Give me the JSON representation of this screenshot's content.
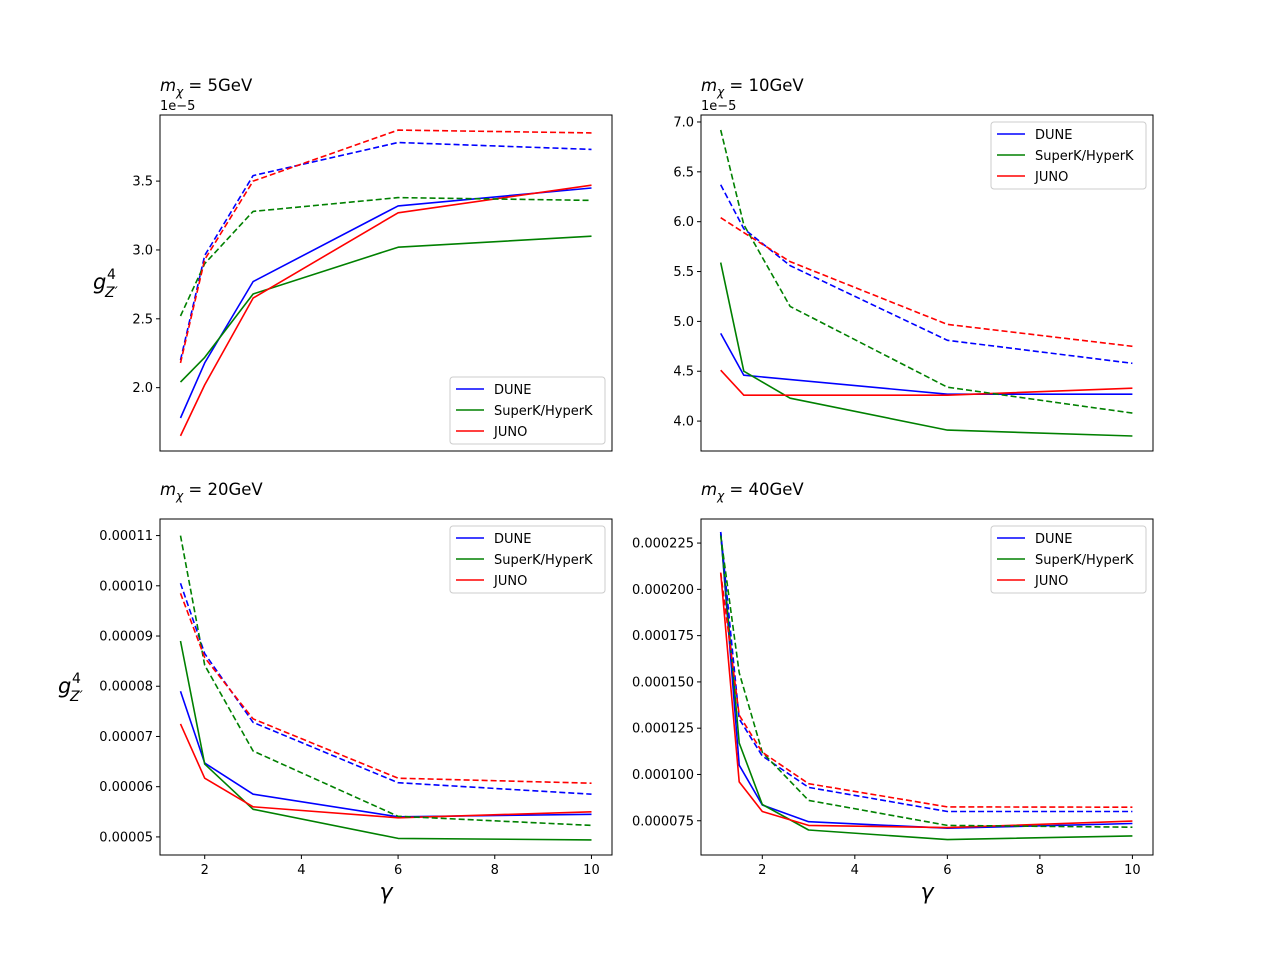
{
  "figure": {
    "x_label": "γ",
    "y_label_main": "g",
    "y_label_sub": "Z′",
    "y_label_sup": "4",
    "title_prefix": "m",
    "title_sub": "χ"
  },
  "colors": {
    "DUNE": "#0000ff",
    "SuperK/HyperK": "#008000",
    "JUNO": "#ff0000",
    "axes": "#000000"
  },
  "chart_data": [
    {
      "type": "line",
      "title": "mχ = 5GeV",
      "title_value": " = 5GeV",
      "offset_text": "1e−5",
      "xlim": [
        1.075,
        10.425
      ],
      "ylim": [
        1.54,
        3.98
      ],
      "yticks": [
        2.0,
        2.5,
        3.0,
        3.5
      ],
      "ytick_labels": [
        "2.0",
        "2.5",
        "3.0",
        "3.5"
      ],
      "xticks": [],
      "xtick_labels": [],
      "show_xlabel": false,
      "show_ylabel": true,
      "legend": "lower right",
      "legend_entries": [
        "DUNE",
        "SuperK/HyperK",
        "JUNO"
      ],
      "series": [
        {
          "name": "DUNE",
          "style": "solid",
          "x": [
            1.5,
            2,
            3,
            6,
            10
          ],
          "y": [
            1.78,
            2.18,
            2.77,
            3.32,
            3.45
          ]
        },
        {
          "name": "SuperK/HyperK",
          "style": "solid",
          "x": [
            1.5,
            2,
            3,
            6,
            10
          ],
          "y": [
            2.04,
            2.22,
            2.68,
            3.02,
            3.1
          ]
        },
        {
          "name": "JUNO",
          "style": "solid",
          "x": [
            1.5,
            2,
            3,
            6,
            10
          ],
          "y": [
            1.65,
            2.02,
            2.65,
            3.27,
            3.47
          ]
        },
        {
          "name": "DUNE",
          "style": "dashed",
          "x": [
            1.5,
            2,
            3,
            6,
            10
          ],
          "y": [
            2.2,
            2.96,
            3.54,
            3.78,
            3.73
          ]
        },
        {
          "name": "SuperK/HyperK",
          "style": "dashed",
          "x": [
            1.5,
            2,
            3,
            6,
            10
          ],
          "y": [
            2.52,
            2.9,
            3.28,
            3.38,
            3.36
          ]
        },
        {
          "name": "JUNO",
          "style": "dashed",
          "x": [
            1.5,
            2,
            3,
            6,
            10
          ],
          "y": [
            2.18,
            2.93,
            3.5,
            3.87,
            3.85
          ]
        }
      ]
    },
    {
      "type": "line",
      "title": "mχ = 10GeV",
      "title_value": " = 10GeV",
      "offset_text": "1e−5",
      "xlim": [
        0.675,
        10.445
      ],
      "ylim": [
        3.7,
        7.07
      ],
      "yticks": [
        4.0,
        4.5,
        5.0,
        5.5,
        6.0,
        6.5,
        7.0
      ],
      "ytick_labels": [
        "4.0",
        "4.5",
        "5.0",
        "5.5",
        "6.0",
        "6.5",
        "7.0"
      ],
      "xticks": [],
      "xtick_labels": [],
      "show_xlabel": false,
      "show_ylabel": false,
      "legend": "upper right",
      "legend_entries": [
        "DUNE",
        "SuperK/HyperK",
        "JUNO"
      ],
      "series": [
        {
          "name": "DUNE",
          "style": "solid",
          "x": [
            1.1,
            1.6,
            6,
            10
          ],
          "y": [
            4.88,
            4.46,
            4.27,
            4.27
          ]
        },
        {
          "name": "SuperK/HyperK",
          "style": "solid",
          "x": [
            1.1,
            1.6,
            2.6,
            6,
            10
          ],
          "y": [
            5.59,
            4.5,
            4.23,
            3.91,
            3.85
          ]
        },
        {
          "name": "JUNO",
          "style": "solid",
          "x": [
            1.1,
            1.6,
            6,
            10
          ],
          "y": [
            4.51,
            4.26,
            4.26,
            4.33
          ]
        },
        {
          "name": "DUNE",
          "style": "dashed",
          "x": [
            1.1,
            1.6,
            2.6,
            6,
            10
          ],
          "y": [
            6.37,
            5.93,
            5.56,
            4.81,
            4.58
          ]
        },
        {
          "name": "SuperK/HyperK",
          "style": "dashed",
          "x": [
            1.1,
            1.6,
            2.6,
            6,
            10
          ],
          "y": [
            6.92,
            5.97,
            5.15,
            4.34,
            4.08
          ]
        },
        {
          "name": "JUNO",
          "style": "dashed",
          "x": [
            1.1,
            1.6,
            2.6,
            6,
            10
          ],
          "y": [
            6.04,
            5.89,
            5.6,
            4.97,
            4.75
          ]
        }
      ]
    },
    {
      "type": "line",
      "title": "mχ = 20GeV",
      "title_value": " = 20GeV",
      "offset_text": "",
      "xlim": [
        1.075,
        10.425
      ],
      "ylim": [
        4.64e-05,
        0.0001133
      ],
      "yticks": [
        5e-05,
        6e-05,
        7e-05,
        8e-05,
        9e-05,
        0.0001,
        0.00011
      ],
      "ytick_labels": [
        "0.00005",
        "0.00006",
        "0.00007",
        "0.00008",
        "0.00009",
        "0.00010",
        "0.00011"
      ],
      "xticks": [
        2,
        4,
        6,
        8,
        10
      ],
      "xtick_labels": [
        "2",
        "4",
        "6",
        "8",
        "10"
      ],
      "show_xlabel": true,
      "show_ylabel": true,
      "legend": "upper right",
      "legend_entries": [
        "DUNE",
        "SuperK/HyperK",
        "JUNO"
      ],
      "series": [
        {
          "name": "DUNE",
          "style": "solid",
          "x": [
            1.5,
            2,
            3,
            6,
            10
          ],
          "y": [
            7.9e-05,
            6.47e-05,
            5.85e-05,
            5.4e-05,
            5.45e-05
          ]
        },
        {
          "name": "SuperK/HyperK",
          "style": "solid",
          "x": [
            1.5,
            2,
            3,
            6,
            10
          ],
          "y": [
            8.9e-05,
            6.45e-05,
            5.55e-05,
            4.97e-05,
            4.94e-05
          ]
        },
        {
          "name": "JUNO",
          "style": "solid",
          "x": [
            1.5,
            2,
            3,
            6,
            10
          ],
          "y": [
            7.25e-05,
            6.17e-05,
            5.6e-05,
            5.38e-05,
            5.5e-05
          ]
        },
        {
          "name": "DUNE",
          "style": "dashed",
          "x": [
            1.5,
            2,
            3,
            6,
            10
          ],
          "y": [
            0.0001005,
            8.65e-05,
            7.28e-05,
            6.08e-05,
            5.85e-05
          ]
        },
        {
          "name": "SuperK/HyperK",
          "style": "dashed",
          "x": [
            1.5,
            2,
            3,
            6,
            10
          ],
          "y": [
            0.00011,
            8.42e-05,
            6.71e-05,
            5.41e-05,
            5.23e-05
          ]
        },
        {
          "name": "JUNO",
          "style": "dashed",
          "x": [
            1.5,
            2,
            3,
            6,
            10
          ],
          "y": [
            9.85e-05,
            8.57e-05,
            7.35e-05,
            6.17e-05,
            6.07e-05
          ]
        }
      ]
    },
    {
      "type": "line",
      "title": "mχ = 40GeV",
      "title_value": " = 40GeV",
      "offset_text": "",
      "xlim": [
        0.675,
        10.445
      ],
      "ylim": [
        5.65e-05,
        0.000238
      ],
      "yticks": [
        7.5e-05,
        0.0001,
        0.000125,
        0.00015,
        0.000175,
        0.0002,
        0.000225
      ],
      "ytick_labels": [
        "0.000075",
        "0.000100",
        "0.000125",
        "0.000150",
        "0.000175",
        "0.000200",
        "0.000225"
      ],
      "xticks": [
        2,
        4,
        6,
        8,
        10
      ],
      "xtick_labels": [
        "2",
        "4",
        "6",
        "8",
        "10"
      ],
      "show_xlabel": true,
      "show_ylabel": false,
      "legend": "upper right",
      "legend_entries": [
        "DUNE",
        "SuperK/HyperK",
        "JUNO"
      ],
      "series": [
        {
          "name": "DUNE",
          "style": "solid",
          "x": [
            1.1,
            1.5,
            2,
            3,
            6,
            10
          ],
          "y": [
            0.000231,
            0.000105,
            8.35e-05,
            7.45e-05,
            7.1e-05,
            7.35e-05
          ]
        },
        {
          "name": "SuperK/HyperK",
          "style": "solid",
          "x": [
            1.1,
            1.5,
            2,
            3,
            6,
            10
          ],
          "y": [
            0.00023,
            0.000117,
            8.38e-05,
            7e-05,
            6.48e-05,
            6.68e-05
          ]
        },
        {
          "name": "JUNO",
          "style": "solid",
          "x": [
            1.1,
            1.5,
            2,
            3,
            6,
            10
          ],
          "y": [
            0.000209,
            9.6e-05,
            8e-05,
            7.25e-05,
            7.13e-05,
            7.48e-05
          ]
        },
        {
          "name": "DUNE",
          "style": "dashed",
          "x": [
            1.1,
            1.5,
            2,
            3,
            6,
            10
          ],
          "y": [
            0.000231,
            0.00013,
            0.00011,
            9.3e-05,
            8e-05,
            8e-05
          ]
        },
        {
          "name": "SuperK/HyperK",
          "style": "dashed",
          "x": [
            1.1,
            1.5,
            2,
            3,
            6,
            10
          ],
          "y": [
            0.000229,
            0.000155,
            0.000112,
            8.6e-05,
            7.25e-05,
            7.15e-05
          ]
        },
        {
          "name": "JUNO",
          "style": "dashed",
          "x": [
            1.1,
            1.5,
            2,
            3,
            6,
            10
          ],
          "y": [
            0.000209,
            0.000132,
            0.000112,
            9.5e-05,
            8.25e-05,
            8.23e-05
          ]
        }
      ]
    }
  ]
}
